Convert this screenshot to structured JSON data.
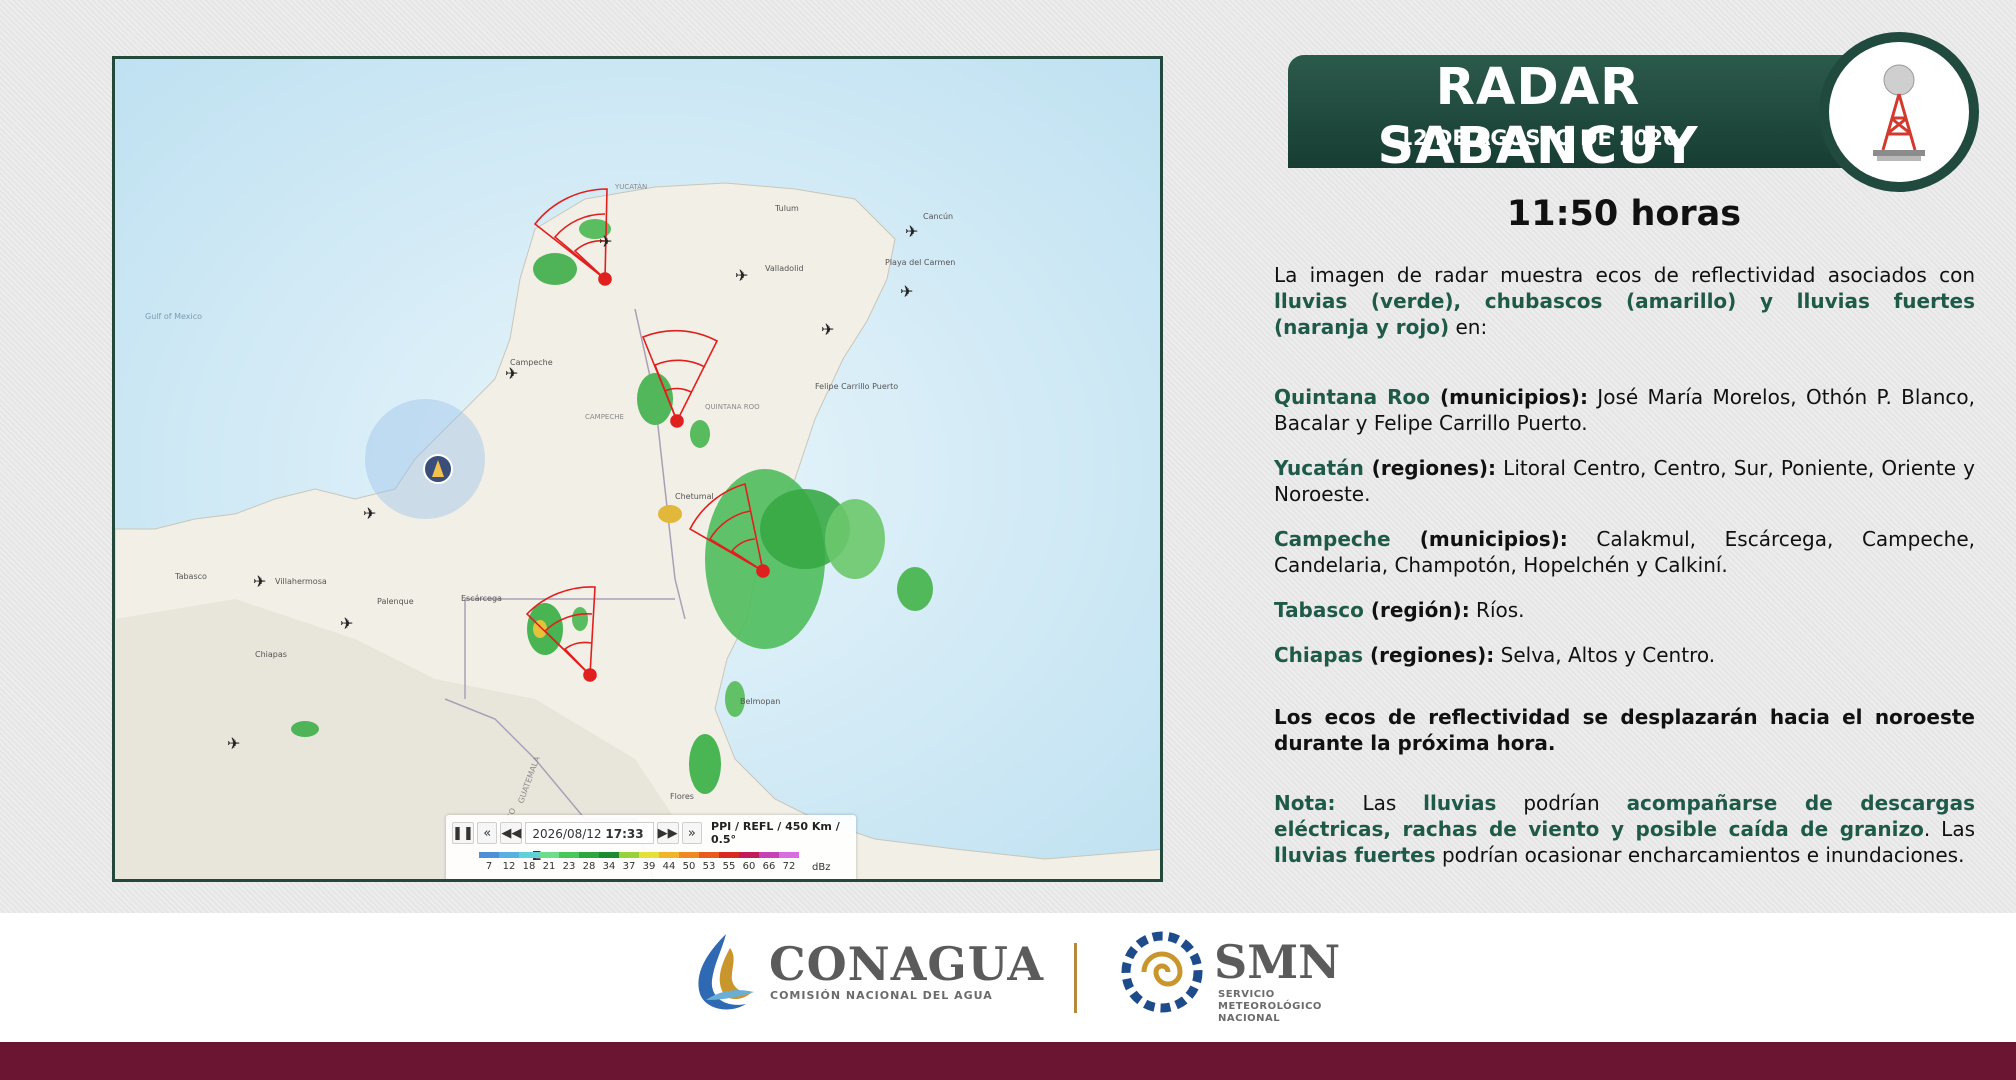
{
  "header": {
    "title": "RADAR SABANCUY",
    "date": "12 DE AGOSTO DE 2026",
    "time": "11:50 horas"
  },
  "colors": {
    "accent_green": "#1f5a48",
    "banner_green": "#173d32",
    "footer_bar": "#6b1533",
    "radar_red": "#e0201e"
  },
  "map": {
    "labels": {
      "cancun": "Cancún",
      "tulum": "Tulum",
      "valladolid": "Valladolid",
      "playa": "Playa del Carmen",
      "campeche": "Campeche",
      "chetumal": "Chetumal",
      "escarcega": "Escárcega",
      "belmopan": "Belmopan",
      "flores": "Flores",
      "villahermosa": "Villahermosa",
      "palenque": "Palenque",
      "guatemala": "GUATEMALA",
      "mexico": "MÉXICO",
      "gulf": "Gulf of Mexico",
      "carrillo": "Felipe Carrillo Puerto",
      "quintana_roo": "QUINTANA ROO",
      "yucatan": "YUCATÁN",
      "campeche_state": "CAMPECHE",
      "tabasco": "Tabasco",
      "chiapas": "Chiapas"
    },
    "player": {
      "pause_icon": "pause-icon",
      "datetime": "2026/08/12",
      "time": "17:33 Z",
      "product": "PPI / REFL / 450 Km / 0.5°",
      "scale_values": [
        "7",
        "12",
        "18",
        "21",
        "23",
        "28",
        "34",
        "37",
        "39",
        "44",
        "50",
        "53",
        "55",
        "60",
        "66",
        "72"
      ],
      "scale_colors": [
        "#4f8fd8",
        "#56b0e0",
        "#5fd1d8",
        "#6fdc8c",
        "#48c85a",
        "#2ea640",
        "#1c8a30",
        "#9ad03a",
        "#e6e13a",
        "#f2b52a",
        "#ef8a22",
        "#e85a1e",
        "#d92a22",
        "#c01c5a",
        "#c640b6",
        "#d86ee0"
      ],
      "unit": "dBz"
    }
  },
  "body": {
    "intro_a": "La imagen de radar muestra ecos de reflectividad asociados con ",
    "intro_b": "lluvias (verde), chubascos (amarillo) y lluvias fuertes (naranja y rojo)",
    "intro_c": " en:",
    "states": [
      {
        "name": "Quintana Roo",
        "kind": " (municipios):",
        "list": " José María Morelos, Othón P. Blanco, Bacalar y Felipe Carrillo Puerto."
      },
      {
        "name": "Yucatán",
        "kind": " (regiones):",
        "list": " Litoral Centro, Centro, Sur, Poniente, Oriente y Noroeste."
      },
      {
        "name": "Campeche",
        "kind": " (municipios):",
        "list": " Calakmul, Escárcega, Campeche, Candelaria, Champotón, Hopelchén y Calkiní."
      },
      {
        "name": "Tabasco",
        "kind": " (región):",
        "list": " Ríos."
      },
      {
        "name": "Chiapas",
        "kind": " (regiones):",
        "list": " Selva, Altos y Centro."
      }
    ],
    "movement": "Los ecos de reflectividad se desplazarán hacia el noroeste durante la próxima hora.",
    "note_label": "Nota:",
    "note_1": " Las ",
    "note_2": "lluvias",
    "note_3": " podrían ",
    "note_4": "acompañarse de descargas eléctricas, rachas de viento y posible caída de granizo",
    "note_5": ". Las ",
    "note_6": "lluvias fuertes",
    "note_7": " podrían ocasionar encharcamientos e inundaciones."
  },
  "footer": {
    "conagua": "CONAGUA",
    "conagua_sub": "COMISIÓN NACIONAL DEL AGUA",
    "smn": "SMN",
    "smn_sub_1": "SERVICIO",
    "smn_sub_2": "METEOROLÓGICO",
    "smn_sub_3": "NACIONAL"
  }
}
